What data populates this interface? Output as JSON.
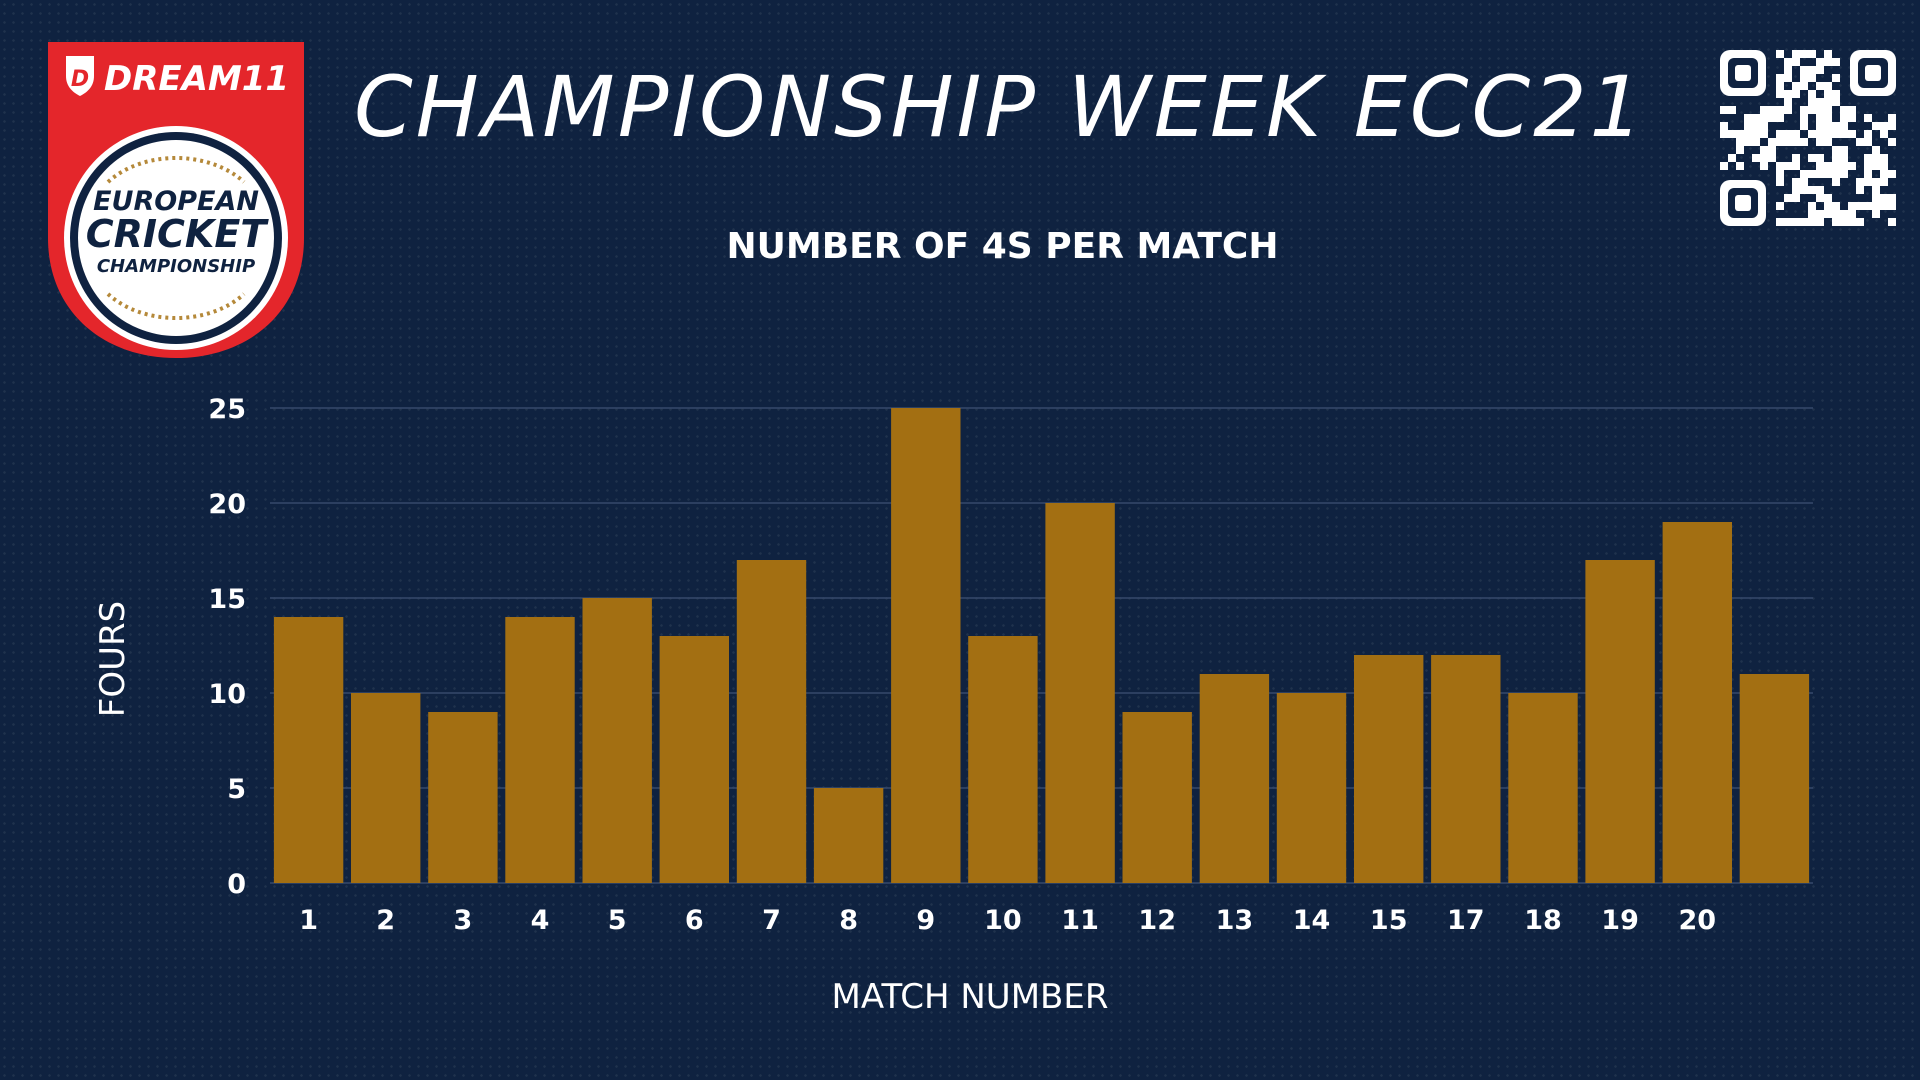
{
  "header": {
    "title": "CHAMPIONSHIP WEEK ECC21"
  },
  "logo": {
    "brand": "DREAM11",
    "line1": "EUROPEAN",
    "line2": "CRICKET",
    "line3": "CHAMPIONSHIP",
    "colors": {
      "badge": "#e4262b",
      "ring": "#ffffff",
      "inner_ring": "#0f2240",
      "gold": "#b5893a"
    }
  },
  "qr_code": {
    "icon": "qr-code-icon"
  },
  "chart_data": {
    "type": "bar",
    "title": "NUMBER OF 4S PER MATCH",
    "xlabel": "MATCH NUMBER",
    "ylabel": "FOURS",
    "categories": [
      "1",
      "2",
      "3",
      "4",
      "5",
      "6",
      "7",
      "8",
      "9",
      "10",
      "11",
      "12",
      "13",
      "14",
      "15",
      "17",
      "18",
      "19",
      "20",
      ""
    ],
    "values": [
      14,
      10,
      9,
      14,
      15,
      13,
      17,
      5,
      25,
      13,
      20,
      9,
      11,
      10,
      12,
      12,
      10,
      17,
      19,
      11
    ],
    "yticks": [
      0,
      5,
      10,
      15,
      20,
      25
    ],
    "ylim": [
      0,
      25
    ],
    "grid": true,
    "legend": "none",
    "colors": {
      "bar": "#a36f12",
      "grid": "#36496a",
      "background": "#0f2240"
    }
  }
}
